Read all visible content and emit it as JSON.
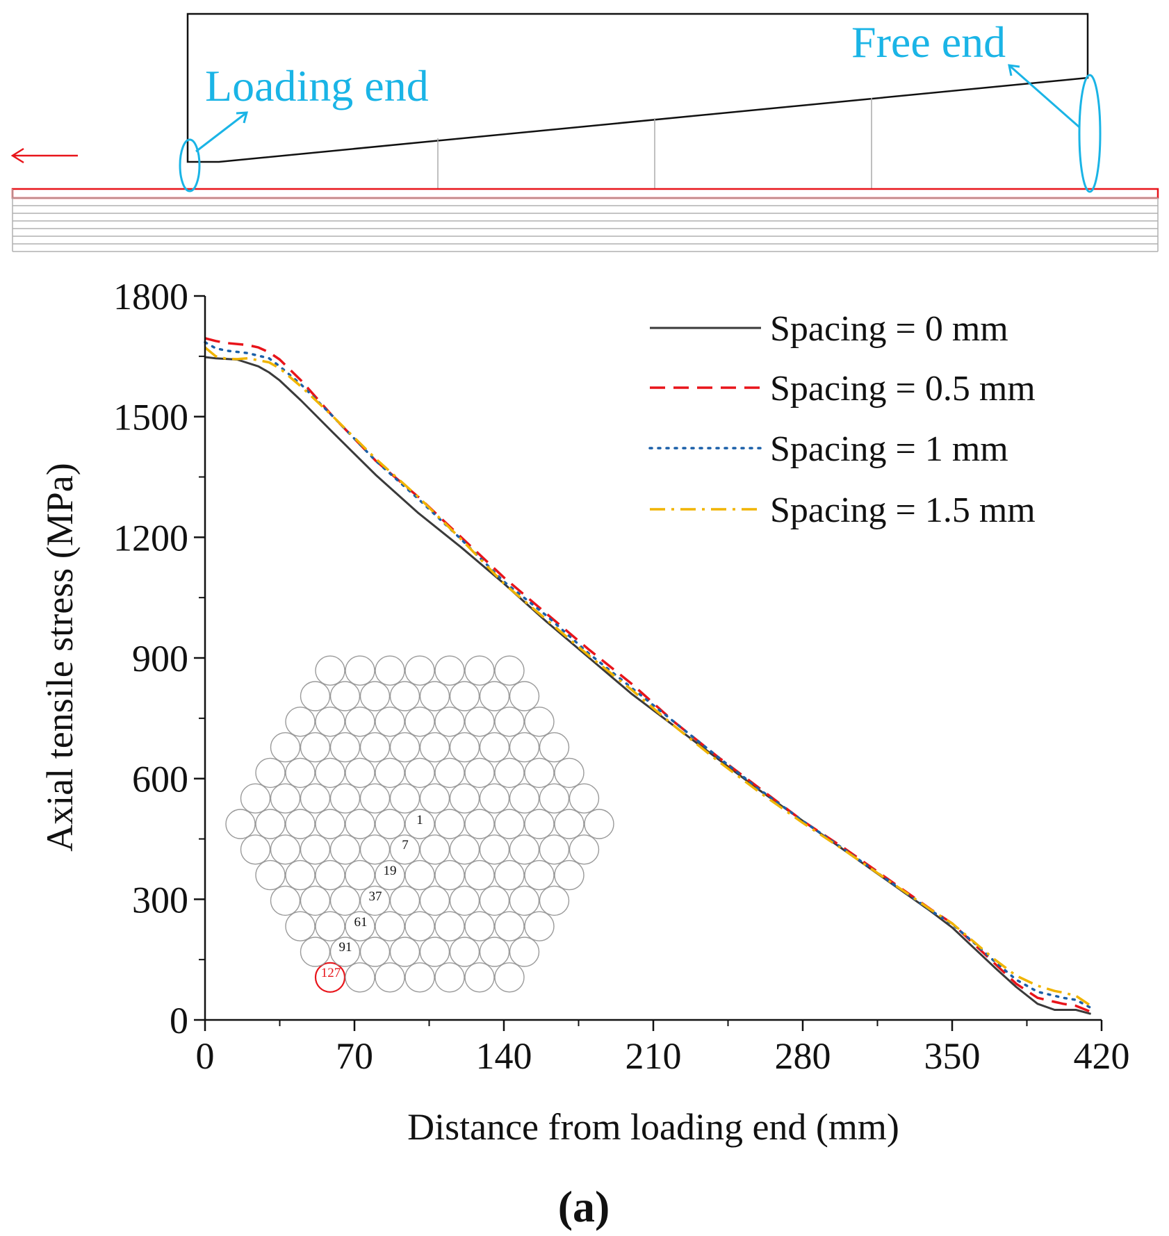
{
  "colors": {
    "axis": "#111111",
    "annotation": "#1ab4e6",
    "highlight": "#e8141a",
    "hex_outline": "#9a9a9a",
    "rebar": "#b0b0b0"
  },
  "schematic": {
    "loading_end_label": "Loading end",
    "free_end_label": "Free end",
    "load_arrow_icon": "arrow-left-icon"
  },
  "inset": {
    "wire_labels": [
      "1",
      "7",
      "19",
      "37",
      "61",
      "91",
      "127"
    ],
    "highlighted_wire": "127"
  },
  "chart_data": {
    "type": "line",
    "title": "",
    "xlabel": "Distance from loading end (mm)",
    "ylabel": "Axial tensile stress (MPa)",
    "xlim": [
      0,
      420
    ],
    "ylim": [
      0,
      1800
    ],
    "xticks": [
      0,
      70,
      140,
      210,
      280,
      350,
      420
    ],
    "yticks": [
      0,
      300,
      600,
      900,
      1200,
      1500,
      1800
    ],
    "legend_position": "top-right",
    "panel_label": "(a)",
    "series": [
      {
        "name": "Spacing = 0 mm",
        "color": "#3a3a3a",
        "dash": "solid",
        "x": [
          0,
          5,
          15,
          25,
          30,
          35,
          45,
          60,
          80,
          100,
          120,
          140,
          160,
          180,
          200,
          220,
          240,
          260,
          280,
          300,
          320,
          340,
          350,
          360,
          370,
          380,
          390,
          398,
          402,
          408,
          415
        ],
        "y": [
          1648,
          1645,
          1642,
          1625,
          1610,
          1590,
          1540,
          1460,
          1355,
          1260,
          1175,
          1085,
          990,
          900,
          810,
          730,
          650,
          570,
          495,
          420,
          345,
          270,
          230,
          180,
          130,
          82,
          40,
          25,
          25,
          25,
          15
        ]
      },
      {
        "name": "Spacing = 0.5 mm",
        "color": "#e8141a",
        "dash": "dashed",
        "x": [
          0,
          5,
          10,
          20,
          25,
          30,
          35,
          45,
          60,
          80,
          100,
          120,
          140,
          160,
          180,
          200,
          220,
          240,
          260,
          280,
          300,
          320,
          340,
          350,
          360,
          370,
          380,
          390,
          398,
          402,
          408,
          415
        ],
        "y": [
          1695,
          1688,
          1683,
          1678,
          1672,
          1660,
          1642,
          1590,
          1500,
          1390,
          1300,
          1200,
          1100,
          1010,
          920,
          835,
          740,
          655,
          575,
          495,
          425,
          350,
          275,
          240,
          190,
          140,
          90,
          55,
          45,
          40,
          35,
          20
        ]
      },
      {
        "name": "Spacing = 1 mm",
        "color": "#1a5fa8",
        "dash": "dotted",
        "x": [
          0,
          5,
          10,
          20,
          30,
          35,
          45,
          60,
          80,
          100,
          120,
          140,
          160,
          180,
          200,
          220,
          240,
          260,
          280,
          300,
          320,
          340,
          350,
          360,
          370,
          380,
          390,
          398,
          402,
          408,
          415
        ],
        "y": [
          1685,
          1670,
          1664,
          1658,
          1645,
          1625,
          1580,
          1500,
          1390,
          1295,
          1195,
          1090,
          1005,
          910,
          825,
          740,
          655,
          572,
          495,
          422,
          347,
          272,
          238,
          193,
          145,
          100,
          70,
          60,
          55,
          50,
          30
        ]
      },
      {
        "name": "Spacing = 1.5 mm",
        "color": "#f0b400",
        "dash": "dashdot",
        "x": [
          0,
          5,
          10,
          15,
          20,
          25,
          30,
          35,
          45,
          60,
          80,
          100,
          120,
          140,
          160,
          180,
          200,
          220,
          240,
          260,
          280,
          300,
          320,
          340,
          350,
          360,
          370,
          380,
          390,
          398,
          402,
          408,
          415
        ],
        "y": [
          1672,
          1650,
          1644,
          1643,
          1645,
          1640,
          1635,
          1620,
          1575,
          1500,
          1395,
          1300,
          1195,
          1085,
          995,
          905,
          820,
          730,
          645,
          565,
          490,
          420,
          347,
          274,
          240,
          195,
          150,
          110,
          85,
          72,
          68,
          60,
          35
        ]
      }
    ]
  }
}
